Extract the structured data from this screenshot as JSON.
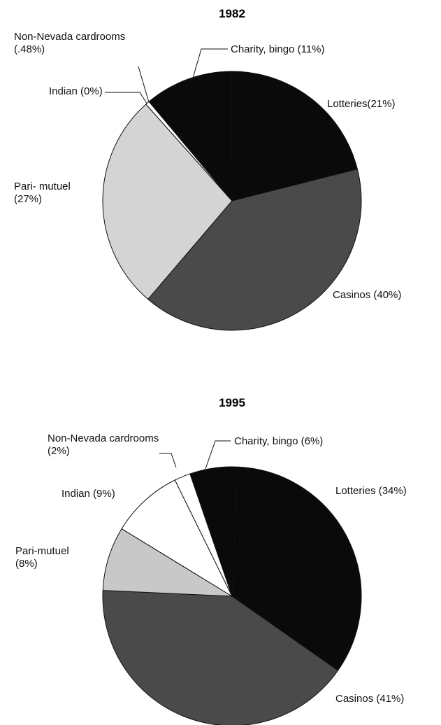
{
  "chart_data": [
    {
      "type": "pie",
      "title": "1982",
      "categories": [
        "Charity, bingo (11%)",
        "Lotteries(21%)",
        "Casinos (40%)",
        "Pari- mutuel (27%)",
        "Indian (0%)",
        "Non-Nevada cardrooms (.48%)"
      ],
      "values": [
        11,
        21,
        40,
        27,
        0,
        0.48
      ],
      "colors": [
        "#0a0a0a",
        "#0a0a0a",
        "#4a4a4a",
        "#d4d4d4",
        "#ffffff",
        "#ffffff"
      ]
    },
    {
      "type": "pie",
      "title": "1995",
      "categories": [
        "Charity, bingo (6%)",
        "Lotteries (34%)",
        "Casinos (41%)",
        "Pari-mutuel (8%)",
        "Indian (9%)",
        "Non-Nevada cardrooms (2%)"
      ],
      "values": [
        6,
        34,
        41,
        8,
        9,
        2
      ],
      "colors": [
        "#0a0a0a",
        "#0a0a0a",
        "#4a4a4a",
        "#c8c8c8",
        "#ffffff",
        "#ffffff"
      ]
    }
  ]
}
